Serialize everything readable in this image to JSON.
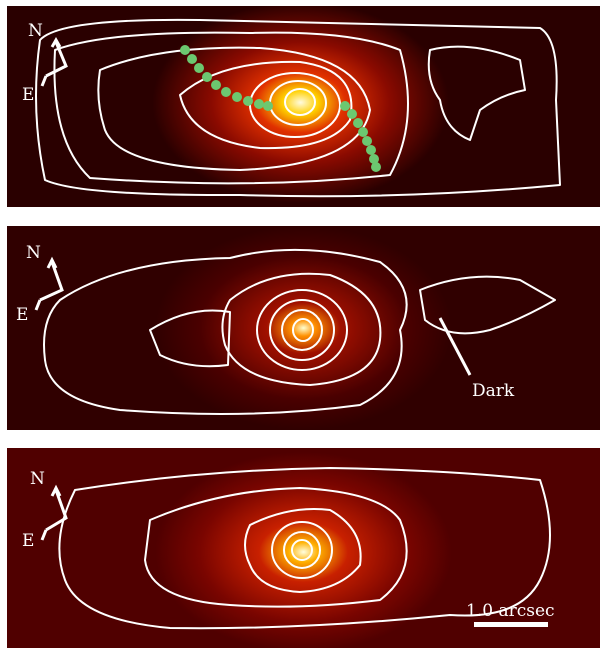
{
  "panels": [
    {
      "compass": {
        "north": "N",
        "east": "E"
      }
    },
    {
      "compass": {
        "north": "N",
        "east": "E"
      },
      "annotation": "Dark"
    },
    {
      "compass": {
        "north": "N",
        "east": "E"
      },
      "scale_bar": "1.0 arcsec"
    }
  ]
}
